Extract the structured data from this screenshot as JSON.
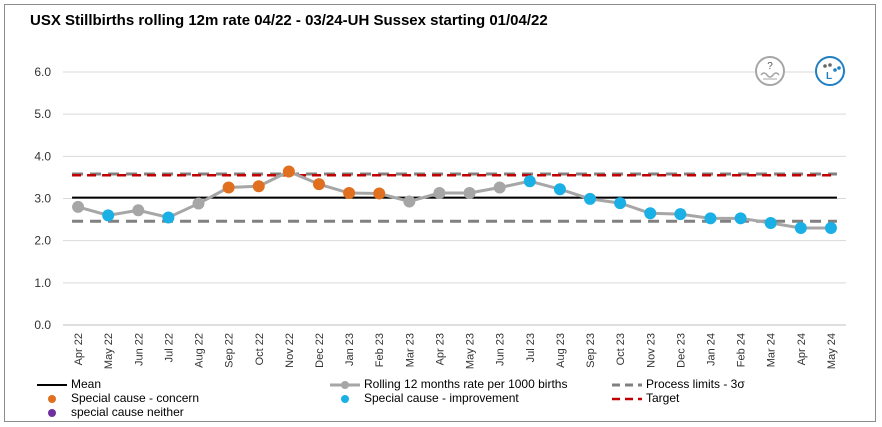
{
  "chart_data": {
    "type": "line",
    "title": "USX Stillbirths rolling 12m rate 04/22 - 03/24-UH Sussex starting 01/04/22",
    "categories": [
      "Apr 22",
      "May 22",
      "Jun 22",
      "Jul 22",
      "Aug 22",
      "Sep 22",
      "Oct 22",
      "Nov 22",
      "Dec 22",
      "Jan 23",
      "Feb 23",
      "Mar 23",
      "Apr 23",
      "May 23",
      "Jun 23",
      "Jul 23",
      "Aug 23",
      "Sep 23",
      "Oct 23",
      "Nov 23",
      "Dec 23",
      "Jan 24",
      "Feb 24",
      "Mar 24",
      "Apr 24",
      "May 24"
    ],
    "ylim": [
      0,
      6
    ],
    "yticks": [
      "0.0",
      "1.0",
      "2.0",
      "3.0",
      "4.0",
      "5.0",
      "6.0"
    ],
    "grid": true,
    "series": [
      {
        "name": "Rolling 12 months rate per 1000 births",
        "values": [
          2.8,
          2.6,
          2.72,
          2.55,
          2.88,
          3.26,
          3.29,
          3.64,
          3.34,
          3.13,
          3.12,
          2.93,
          3.13,
          3.13,
          3.26,
          3.41,
          3.22,
          2.99,
          2.89,
          2.65,
          2.63,
          2.53,
          2.53,
          2.42,
          2.3,
          2.3
        ],
        "marker_types": [
          "none",
          "improvement",
          "none",
          "improvement",
          "none",
          "concern",
          "concern",
          "concern",
          "concern",
          "concern",
          "concern",
          "none",
          "none",
          "none",
          "none",
          "improvement",
          "improvement",
          "improvement",
          "improvement",
          "improvement",
          "improvement",
          "improvement",
          "improvement",
          "improvement",
          "improvement",
          "improvement"
        ]
      }
    ],
    "mean": 3.02,
    "target": 3.55,
    "process_limits": {
      "upper": 3.58,
      "lower": 2.46
    },
    "colors": {
      "line": "#a6a6a6",
      "mean": "#000000",
      "limits": "#808080",
      "target": "#c00000",
      "concern": "#e07020",
      "improvement": "#1ab0e6",
      "neither": "#7030a0",
      "grid": "#d9d9d9"
    },
    "legend": [
      {
        "label": "Mean",
        "kind": "solid-line",
        "color_key": "mean"
      },
      {
        "label": "Rolling 12 months rate per 1000 births",
        "kind": "line-marker",
        "color_key": "line"
      },
      {
        "label": "Process limits - 3σ",
        "kind": "dash-line",
        "color_key": "limits"
      },
      {
        "label": "Special cause - concern",
        "kind": "dot",
        "color_key": "concern"
      },
      {
        "label": "Special cause  - improvement",
        "kind": "dot",
        "color_key": "improvement"
      },
      {
        "label": "Target",
        "kind": "dash-line",
        "color_key": "target"
      },
      {
        "label": "special cause neither",
        "kind": "dot",
        "color_key": "neither"
      }
    ],
    "legend_position": "bottom"
  },
  "icons": {
    "variation": {
      "name": "variation-question-icon",
      "symbol": "?"
    },
    "assurance": {
      "name": "improvement-assurance-icon",
      "symbol": "L"
    }
  }
}
